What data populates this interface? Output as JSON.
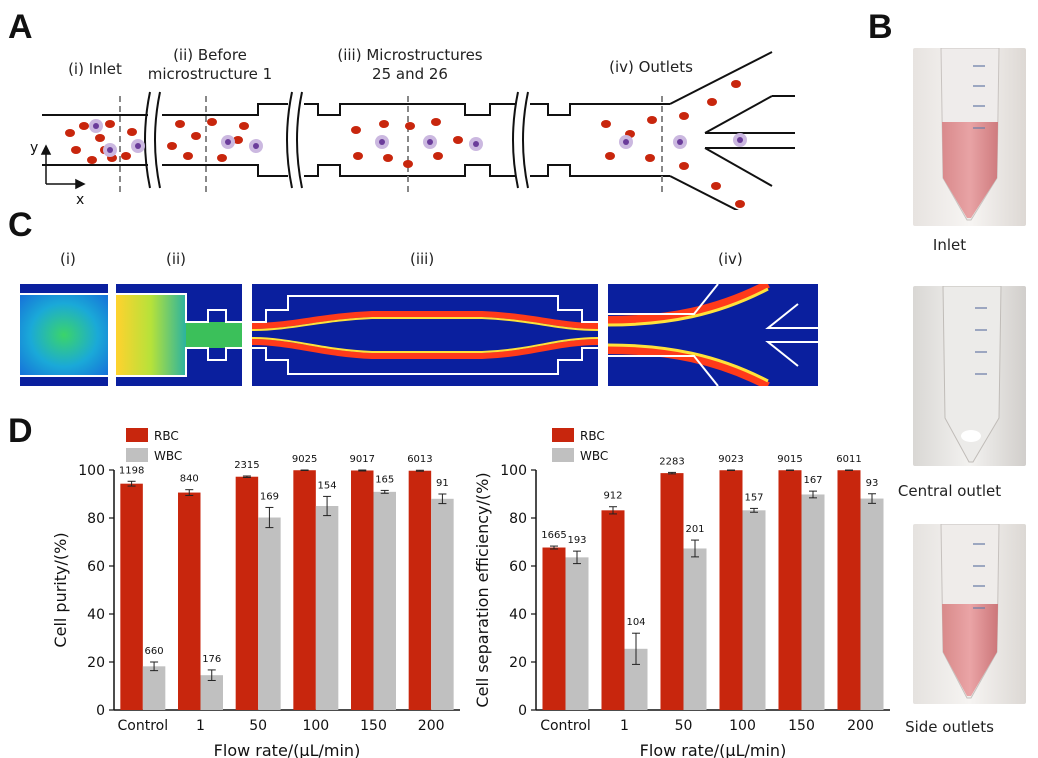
{
  "panels": {
    "a": "A",
    "b": "B",
    "c": "C",
    "d": "D"
  },
  "schematic": {
    "labels": [
      "(i) Inlet",
      "(ii) Before\nmicrostructure 1",
      "(iii) Microstructures\n25 and 26",
      "(iv) Outlets"
    ],
    "axis_y": "y",
    "axis_x": "x"
  },
  "heatmaps": {
    "labels": [
      "(i)",
      "(ii)",
      "(iii)",
      "(iv)"
    ]
  },
  "tubes": {
    "captions": [
      "Inlet",
      "Central outlet",
      "Side outlets"
    ]
  },
  "colors": {
    "rbc": "#c8260d",
    "wbc": "#c0c0c0",
    "heat_bg": "#0a1f9e"
  },
  "chart_data": [
    {
      "type": "bar",
      "categories": [
        "Control",
        "1",
        "50",
        "100",
        "150",
        "200"
      ],
      "xlabel": "Flow rate/(μL/min)",
      "ylabel": "Cell purity/(%)",
      "ylim": [
        0,
        100
      ],
      "yticks": [
        0,
        20,
        40,
        60,
        80,
        100
      ],
      "legend": "top-left",
      "series": [
        {
          "name": "RBC",
          "values": [
            94.3,
            90.6,
            97.2,
            99.9,
            99.8,
            99.7
          ],
          "err": [
            1.0,
            1.2,
            0.3,
            0.1,
            0.2,
            0.2
          ],
          "labels": [
            "1198",
            "840",
            "2315",
            "9025",
            "9017",
            "6013"
          ]
        },
        {
          "name": "WBC",
          "values": [
            18.2,
            14.5,
            80.2,
            85.0,
            90.9,
            88.0
          ],
          "err": [
            1.8,
            2.2,
            4.2,
            4.0,
            0.6,
            2.0
          ],
          "labels": [
            "660",
            "176",
            "169",
            "154",
            "165",
            "91"
          ]
        }
      ]
    },
    {
      "type": "bar",
      "categories": [
        "Control",
        "1",
        "50",
        "100",
        "150",
        "200"
      ],
      "xlabel": "Flow rate/(μL/min)",
      "ylabel": "Cell separation efficiency/(%)",
      "ylim": [
        0,
        100
      ],
      "yticks": [
        0,
        20,
        40,
        60,
        80,
        100
      ],
      "legend": "top-left",
      "series": [
        {
          "name": "RBC",
          "values": [
            67.7,
            83.2,
            98.7,
            99.9,
            99.9,
            99.9
          ],
          "err": [
            0.6,
            1.5,
            0.3,
            0.1,
            0.1,
            0.1
          ],
          "labels": [
            "1665",
            "912",
            "2283",
            "9023",
            "9015",
            "6011"
          ]
        },
        {
          "name": "WBC",
          "values": [
            63.6,
            25.5,
            67.3,
            83.2,
            89.8,
            88.1
          ],
          "err": [
            2.6,
            6.5,
            3.5,
            0.8,
            1.4,
            2.0
          ],
          "labels": [
            "193",
            "104",
            "201",
            "157",
            "167",
            "93"
          ]
        }
      ]
    }
  ]
}
